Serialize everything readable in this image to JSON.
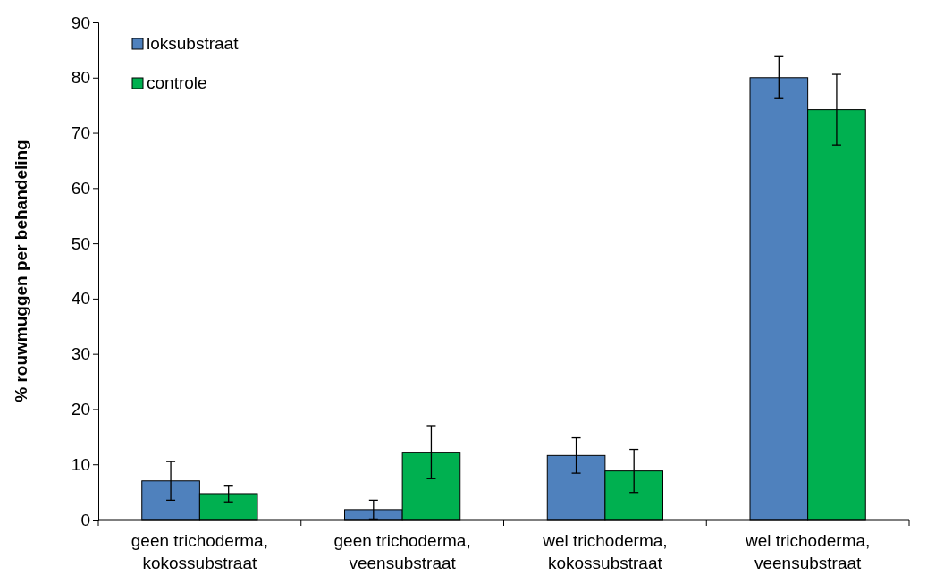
{
  "chart_data": {
    "type": "bar",
    "ylabel": "% rouwmuggen per behandeling",
    "categories": [
      "geen trichoderma,\nkokossubstraat",
      "geen trichoderma,\nveensubstraat",
      "wel trichoderma,\nkokossubstraat",
      "wel trichoderma,\nveensubstraat"
    ],
    "series": [
      {
        "name": "loksubstraat",
        "color": "#4f81bd",
        "values": [
          7,
          1.8,
          11.6,
          80
        ],
        "errors": [
          3.5,
          1.7,
          3.2,
          3.8
        ]
      },
      {
        "name": "controle",
        "color": "#00b050",
        "values": [
          4.7,
          12.2,
          8.8,
          74.2
        ],
        "errors": [
          1.5,
          4.8,
          3.9,
          6.4
        ]
      }
    ],
    "ylim": [
      0,
      90
    ],
    "yticks": [
      0,
      10,
      20,
      30,
      40,
      50,
      60,
      70,
      80,
      90
    ],
    "grid": false,
    "legend": "top left"
  }
}
